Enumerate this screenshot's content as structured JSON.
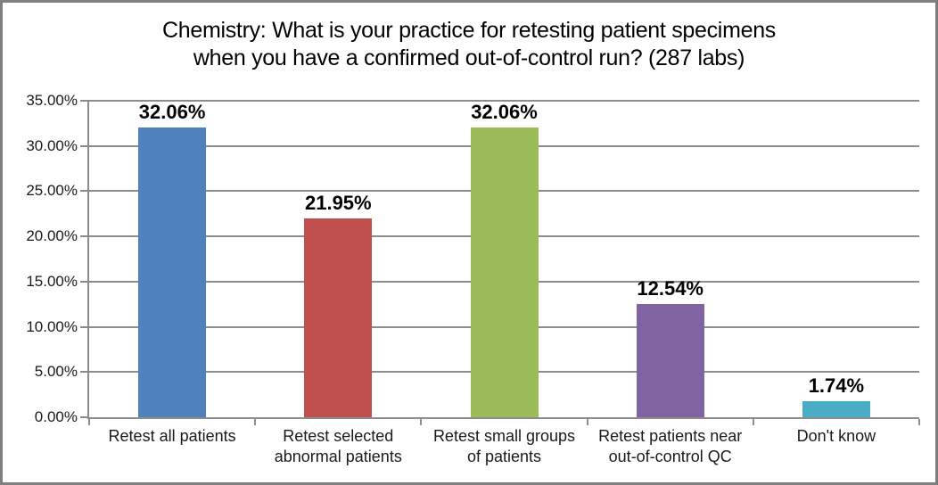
{
  "chart_data": {
    "type": "bar",
    "title": "Chemistry: What is your practice for retesting patient specimens when you have a confirmed out-of-control run? (287 labs)",
    "title_lines": [
      "Chemistry: What is your practice for retesting patient specimens",
      "when you have a confirmed out-of-control run? (287 labs)"
    ],
    "categories": [
      "Retest all patients",
      "Retest selected abnormal patients",
      "Retest small groups of patients",
      "Retest patients near out-of-control QC",
      "Don't know"
    ],
    "category_lines": [
      [
        "Retest all patients"
      ],
      [
        "Retest selected",
        "abnormal patients"
      ],
      [
        "Retest small groups",
        "of patients"
      ],
      [
        "Retest patients near",
        "out-of-control QC"
      ],
      [
        "Don't know"
      ]
    ],
    "values": [
      32.06,
      21.95,
      32.06,
      12.54,
      1.74
    ],
    "value_labels": [
      "32.06%",
      "21.95%",
      "32.06%",
      "12.54%",
      "1.74%"
    ],
    "bar_colors": [
      "#4F81BD",
      "#C0504D",
      "#9BBB59",
      "#8064A2",
      "#4BACC6"
    ],
    "ylim": [
      0,
      35
    ],
    "ytick_step": 5,
    "ytick_labels": [
      "0.00%",
      "5.00%",
      "10.00%",
      "15.00%",
      "20.00%",
      "25.00%",
      "30.00%",
      "35.00%"
    ],
    "grid": true,
    "legend": "none",
    "gridline_color": "#8C8C8C",
    "axis_color": "#8C8C8C",
    "border_color": "#7F7F7F",
    "xlabel": "",
    "ylabel": ""
  }
}
